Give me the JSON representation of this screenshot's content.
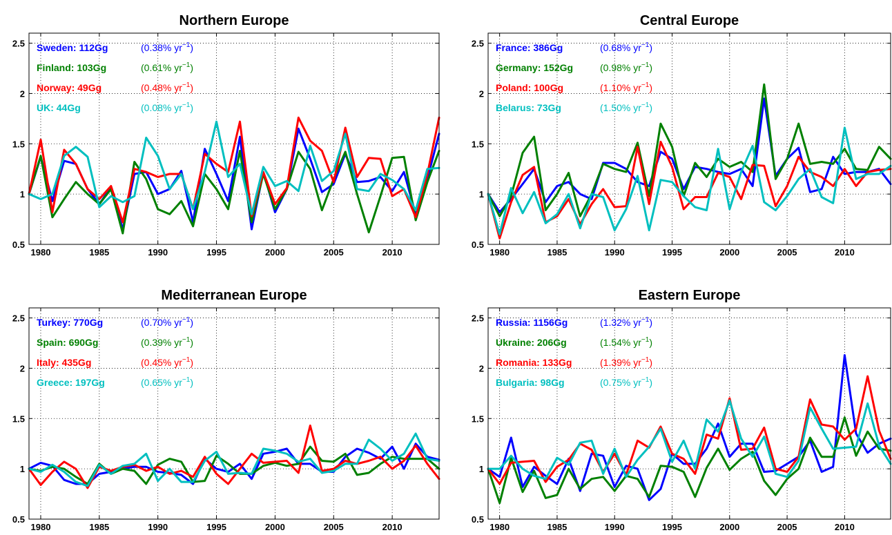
{
  "chart_data": [
    {
      "type": "line",
      "title": "Northern Europe",
      "xlabel": "",
      "ylabel": "",
      "xlim": [
        1979,
        2014
      ],
      "ylim": [
        0.5,
        2.6
      ],
      "xticks": [
        "1980",
        "1985",
        "1990",
        "1995",
        "2000",
        "2005",
        "2010"
      ],
      "yticks": [
        "0.5",
        "1",
        "1.5",
        "2",
        "2.5"
      ],
      "grid": true,
      "x": [
        1979,
        1980,
        1981,
        1982,
        1983,
        1984,
        1985,
        1986,
        1987,
        1988,
        1989,
        1990,
        1991,
        1992,
        1993,
        1994,
        1995,
        1996,
        1997,
        1998,
        1999,
        2000,
        2001,
        2002,
        2003,
        2004,
        2005,
        2006,
        2007,
        2008,
        2009,
        2010,
        2011,
        2012,
        2013,
        2014
      ],
      "annotations": [
        {
          "label": "Sweden: 112Gg",
          "rate": "(0.38% yr",
          "unit": "−1",
          "close": ")",
          "color": "#0000ff"
        },
        {
          "label": "Finland: 103Gg",
          "rate": "(0.61% yr",
          "unit": "−1",
          "close": ")",
          "color": "#008000"
        },
        {
          "label": "Norway: 49Gg",
          "rate": "(0.48% yr",
          "unit": "−1",
          "close": ")",
          "color": "#ff0000"
        },
        {
          "label": "UK: 44Gg",
          "rate": "(0.08% yr",
          "unit": "−1",
          "close": ")",
          "color": "#00bfbf"
        }
      ],
      "series": [
        {
          "color": "#0000ff",
          "values": [
            1.0,
            1.37,
            0.93,
            1.33,
            1.3,
            1.05,
            0.9,
            1.07,
            0.65,
            1.2,
            1.22,
            1.0,
            1.05,
            1.23,
            0.72,
            1.45,
            1.2,
            0.93,
            1.57,
            0.65,
            1.22,
            0.82,
            1.05,
            1.65,
            1.35,
            1.02,
            1.1,
            1.4,
            1.12,
            1.13,
            1.17,
            1.03,
            1.22,
            0.8,
            1.15,
            1.6
          ]
        },
        {
          "color": "#008000",
          "values": [
            1.0,
            1.38,
            0.77,
            0.95,
            1.12,
            1.0,
            0.9,
            1.05,
            0.61,
            1.32,
            1.15,
            0.85,
            0.8,
            0.93,
            0.68,
            1.2,
            1.05,
            0.85,
            1.43,
            0.72,
            1.2,
            0.85,
            1.05,
            1.42,
            1.25,
            0.84,
            1.15,
            1.42,
            1.0,
            0.62,
            0.98,
            1.36,
            1.37,
            0.74,
            1.12,
            1.43
          ]
        },
        {
          "color": "#ff0000",
          "values": [
            1.0,
            1.54,
            0.82,
            1.44,
            1.3,
            1.05,
            0.95,
            1.08,
            0.72,
            1.25,
            1.22,
            1.17,
            1.2,
            1.2,
            0.85,
            1.4,
            1.3,
            1.22,
            1.72,
            0.78,
            1.22,
            0.9,
            1.06,
            1.76,
            1.53,
            1.43,
            1.12,
            1.66,
            1.17,
            1.36,
            1.35,
            0.98,
            1.05,
            0.77,
            1.2,
            1.76
          ]
        },
        {
          "color": "#00bfbf",
          "values": [
            1.0,
            0.95,
            1.0,
            1.38,
            1.47,
            1.37,
            0.87,
            0.98,
            0.92,
            0.98,
            1.56,
            1.38,
            1.05,
            1.2,
            0.85,
            1.22,
            1.72,
            1.17,
            1.3,
            0.8,
            1.27,
            1.08,
            1.13,
            1.03,
            1.48,
            1.13,
            1.23,
            1.6,
            1.05,
            1.03,
            1.2,
            1.14,
            1.05,
            0.84,
            1.25,
            1.26
          ]
        }
      ]
    },
    {
      "type": "line",
      "title": "Central Europe",
      "xlabel": "",
      "ylabel": "",
      "xlim": [
        1979,
        2014
      ],
      "ylim": [
        0.5,
        2.6
      ],
      "xticks": [
        "1980",
        "1985",
        "1990",
        "1995",
        "2000",
        "2005",
        "2010"
      ],
      "yticks": [
        "0.5",
        "1",
        "1.5",
        "2",
        "2.5"
      ],
      "grid": true,
      "x": [
        1979,
        1980,
        1981,
        1982,
        1983,
        1984,
        1985,
        1986,
        1987,
        1988,
        1989,
        1990,
        1991,
        1992,
        1993,
        1994,
        1995,
        1996,
        1997,
        1998,
        1999,
        2000,
        2001,
        2002,
        2003,
        2004,
        2005,
        2006,
        2007,
        2008,
        2009,
        2010,
        2011,
        2012,
        2013,
        2014
      ],
      "annotations": [
        {
          "label": "France: 386Gg",
          "rate": "(0.68% yr",
          "unit": "−1",
          "close": ")",
          "color": "#0000ff"
        },
        {
          "label": "Germany: 152Gg",
          "rate": "(0.98% yr",
          "unit": "−1",
          "close": ")",
          "color": "#008000"
        },
        {
          "label": "Poland: 100Gg",
          "rate": "(1.10% yr",
          "unit": "−1",
          "close": ")",
          "color": "#ff0000"
        },
        {
          "label": "Belarus: 73Gg",
          "rate": "(1.50% yr",
          "unit": "−1",
          "close": ")",
          "color": "#00bfbf"
        }
      ],
      "series": [
        {
          "color": "#0000ff",
          "values": [
            1.0,
            0.82,
            0.95,
            1.1,
            1.25,
            0.92,
            1.08,
            1.12,
            1.0,
            0.95,
            1.31,
            1.31,
            1.25,
            1.12,
            1.08,
            1.42,
            1.35,
            1.05,
            1.27,
            1.25,
            1.22,
            1.2,
            1.25,
            1.08,
            1.95,
            1.18,
            1.35,
            1.46,
            1.02,
            1.05,
            1.37,
            1.2,
            1.22,
            1.22,
            1.25,
            1.1
          ]
        },
        {
          "color": "#008000",
          "values": [
            1.0,
            0.78,
            0.98,
            1.41,
            1.57,
            0.84,
            1.0,
            1.21,
            0.78,
            1.0,
            1.3,
            1.25,
            1.22,
            1.51,
            0.98,
            1.7,
            1.47,
            0.98,
            1.31,
            1.17,
            1.35,
            1.27,
            1.32,
            1.22,
            2.09,
            1.15,
            1.35,
            1.7,
            1.3,
            1.32,
            1.3,
            1.45,
            1.25,
            1.24,
            1.47,
            1.35
          ]
        },
        {
          "color": "#ff0000",
          "values": [
            1.0,
            0.56,
            0.92,
            1.19,
            1.27,
            0.72,
            0.78,
            0.95,
            0.7,
            0.9,
            1.05,
            0.87,
            0.88,
            1.47,
            0.9,
            1.52,
            1.27,
            0.85,
            0.97,
            0.97,
            1.21,
            1.17,
            0.95,
            1.29,
            1.28,
            0.88,
            1.08,
            1.37,
            1.22,
            1.17,
            1.08,
            1.25,
            1.08,
            1.22,
            1.24,
            1.25
          ]
        },
        {
          "color": "#00bfbf",
          "values": [
            1.0,
            0.6,
            1.06,
            0.81,
            1.02,
            0.71,
            0.8,
            1.0,
            0.66,
            1.0,
            0.97,
            0.64,
            0.85,
            1.18,
            0.64,
            1.14,
            1.12,
            0.98,
            0.87,
            0.84,
            1.45,
            0.85,
            1.22,
            1.48,
            0.92,
            0.84,
            0.98,
            1.15,
            1.25,
            0.97,
            0.91,
            1.66,
            1.15,
            1.2,
            1.2,
            1.28
          ]
        }
      ]
    },
    {
      "type": "line",
      "title": "Mediterranean Europe",
      "xlabel": "",
      "ylabel": "",
      "xlim": [
        1979,
        2014
      ],
      "ylim": [
        0.5,
        2.6
      ],
      "xticks": [
        "1980",
        "1985",
        "1990",
        "1995",
        "2000",
        "2005",
        "2010"
      ],
      "yticks": [
        "0.5",
        "1",
        "1.5",
        "2",
        "2.5"
      ],
      "grid": true,
      "x": [
        1979,
        1980,
        1981,
        1982,
        1983,
        1984,
        1985,
        1986,
        1987,
        1988,
        1989,
        1990,
        1991,
        1992,
        1993,
        1994,
        1995,
        1996,
        1997,
        1998,
        1999,
        2000,
        2001,
        2002,
        2003,
        2004,
        2005,
        2006,
        2007,
        2008,
        2009,
        2010,
        2011,
        2012,
        2013,
        2014
      ],
      "annotations": [
        {
          "label": "Turkey: 770Gg",
          "rate": "(0.70% yr",
          "unit": "−1",
          "close": ")",
          "color": "#0000ff"
        },
        {
          "label": "Spain: 690Gg",
          "rate": "(0.39% yr",
          "unit": "−1",
          "close": ")",
          "color": "#008000"
        },
        {
          "label": "Italy: 435Gg",
          "rate": "(0.45% yr",
          "unit": "−1",
          "close": ")",
          "color": "#ff0000"
        },
        {
          "label": "Greece: 197Gg",
          "rate": "(0.65% yr",
          "unit": "−1",
          "close": ")",
          "color": "#00bfbf"
        }
      ],
      "series": [
        {
          "color": "#0000ff",
          "values": [
            1.0,
            1.06,
            1.03,
            0.89,
            0.85,
            0.85,
            0.95,
            0.97,
            1.0,
            1.02,
            1.02,
            0.97,
            0.96,
            0.94,
            0.85,
            1.1,
            1.0,
            0.97,
            1.05,
            0.9,
            1.15,
            1.17,
            1.2,
            1.05,
            1.05,
            0.97,
            0.97,
            1.12,
            1.2,
            1.16,
            1.1,
            1.22,
            1.0,
            1.25,
            1.12,
            1.09
          ]
        },
        {
          "color": "#008000",
          "values": [
            1.0,
            0.98,
            1.02,
            1.0,
            0.92,
            0.85,
            1.05,
            0.95,
            1.0,
            0.98,
            0.85,
            1.04,
            1.1,
            1.07,
            0.87,
            0.88,
            1.13,
            1.05,
            0.95,
            0.95,
            1.03,
            1.06,
            1.03,
            1.05,
            1.22,
            1.08,
            1.07,
            1.15,
            0.94,
            0.96,
            1.05,
            1.12,
            1.1,
            1.1,
            1.1,
            1.0
          ]
        },
        {
          "color": "#ff0000",
          "values": [
            1.0,
            0.84,
            0.97,
            1.07,
            1.0,
            0.81,
            1.02,
            0.98,
            1.02,
            1.04,
            0.98,
            1.02,
            0.95,
            0.98,
            0.92,
            1.12,
            0.95,
            0.85,
            1.0,
            1.15,
            1.06,
            1.07,
            1.08,
            0.96,
            1.43,
            0.98,
            1.0,
            1.08,
            1.05,
            1.08,
            1.12,
            1.0,
            1.08,
            1.23,
            1.05,
            0.9
          ]
        },
        {
          "color": "#00bfbf",
          "values": [
            1.0,
            0.97,
            1.04,
            0.97,
            0.87,
            0.83,
            1.04,
            0.95,
            1.03,
            1.05,
            1.15,
            0.88,
            1.0,
            0.87,
            0.87,
            1.08,
            1.17,
            0.95,
            0.96,
            0.95,
            1.2,
            1.18,
            1.15,
            1.07,
            1.1,
            0.96,
            0.98,
            1.05,
            1.05,
            1.29,
            1.2,
            1.08,
            1.15,
            1.35,
            1.1,
            1.08
          ]
        }
      ]
    },
    {
      "type": "line",
      "title": "Eastern Europe",
      "xlabel": "",
      "ylabel": "",
      "xlim": [
        1979,
        2014
      ],
      "ylim": [
        0.5,
        2.6
      ],
      "xticks": [
        "1980",
        "1985",
        "1990",
        "1995",
        "2000",
        "2005",
        "2010"
      ],
      "yticks": [
        "0.5",
        "1",
        "1.5",
        "2",
        "2.5"
      ],
      "grid": true,
      "x": [
        1979,
        1980,
        1981,
        1982,
        1983,
        1984,
        1985,
        1986,
        1987,
        1988,
        1989,
        1990,
        1991,
        1992,
        1993,
        1994,
        1995,
        1996,
        1997,
        1998,
        1999,
        2000,
        2001,
        2002,
        2003,
        2004,
        2005,
        2006,
        2007,
        2008,
        2009,
        2010,
        2011,
        2012,
        2013,
        2014
      ],
      "annotations": [
        {
          "label": "Russia: 1156Gg",
          "rate": "(1.32% yr",
          "unit": "−1",
          "close": ")",
          "color": "#0000ff"
        },
        {
          "label": "Ukraine: 206Gg",
          "rate": "(1.54% yr",
          "unit": "−1",
          "close": ")",
          "color": "#008000"
        },
        {
          "label": "Romania: 133Gg",
          "rate": "(1.39% yr",
          "unit": "−1",
          "close": ")",
          "color": "#ff0000"
        },
        {
          "label": "Bulgaria: 98Gg",
          "rate": "(0.75% yr",
          "unit": "−1",
          "close": ")",
          "color": "#00bfbf"
        }
      ],
      "series": [
        {
          "color": "#0000ff",
          "values": [
            1.0,
            0.92,
            1.31,
            0.82,
            1.02,
            0.93,
            0.85,
            1.1,
            0.78,
            1.15,
            1.13,
            0.82,
            1.03,
            1.0,
            0.69,
            0.8,
            1.15,
            1.05,
            1.05,
            1.2,
            1.45,
            1.12,
            1.25,
            1.25,
            0.97,
            0.98,
            1.05,
            1.12,
            1.28,
            0.97,
            1.02,
            2.13,
            1.35,
            1.16,
            1.25,
            1.3
          ]
        },
        {
          "color": "#008000",
          "values": [
            1.0,
            0.66,
            1.11,
            0.77,
            0.98,
            0.71,
            0.74,
            1.0,
            0.8,
            0.9,
            0.92,
            0.78,
            0.93,
            0.9,
            0.72,
            1.03,
            1.02,
            0.97,
            0.72,
            1.01,
            1.2,
            0.99,
            1.1,
            1.17,
            0.88,
            0.74,
            0.9,
            1.0,
            1.31,
            1.12,
            1.12,
            1.51,
            1.13,
            1.37,
            1.2,
            1.18
          ]
        },
        {
          "color": "#ff0000",
          "values": [
            1.0,
            0.85,
            1.06,
            1.07,
            1.08,
            0.87,
            1.02,
            1.09,
            1.25,
            1.19,
            0.97,
            1.15,
            0.94,
            1.28,
            1.21,
            1.42,
            1.15,
            1.1,
            0.95,
            1.34,
            1.3,
            1.7,
            1.19,
            1.2,
            1.41,
            1.0,
            0.97,
            1.12,
            1.69,
            1.44,
            1.42,
            1.29,
            1.4,
            1.92,
            1.38,
            1.1
          ]
        },
        {
          "color": "#00bfbf",
          "values": [
            1.0,
            1.0,
            1.13,
            1.0,
            0.93,
            0.9,
            1.11,
            1.04,
            1.26,
            1.28,
            0.95,
            1.2,
            0.92,
            1.09,
            1.22,
            1.4,
            1.07,
            1.28,
            1.0,
            1.49,
            1.37,
            1.68,
            1.3,
            1.12,
            1.32,
            0.95,
            0.92,
            1.08,
            1.61,
            1.4,
            1.2,
            1.21,
            1.22,
            1.65,
            1.23,
            1.05
          ]
        }
      ]
    }
  ]
}
